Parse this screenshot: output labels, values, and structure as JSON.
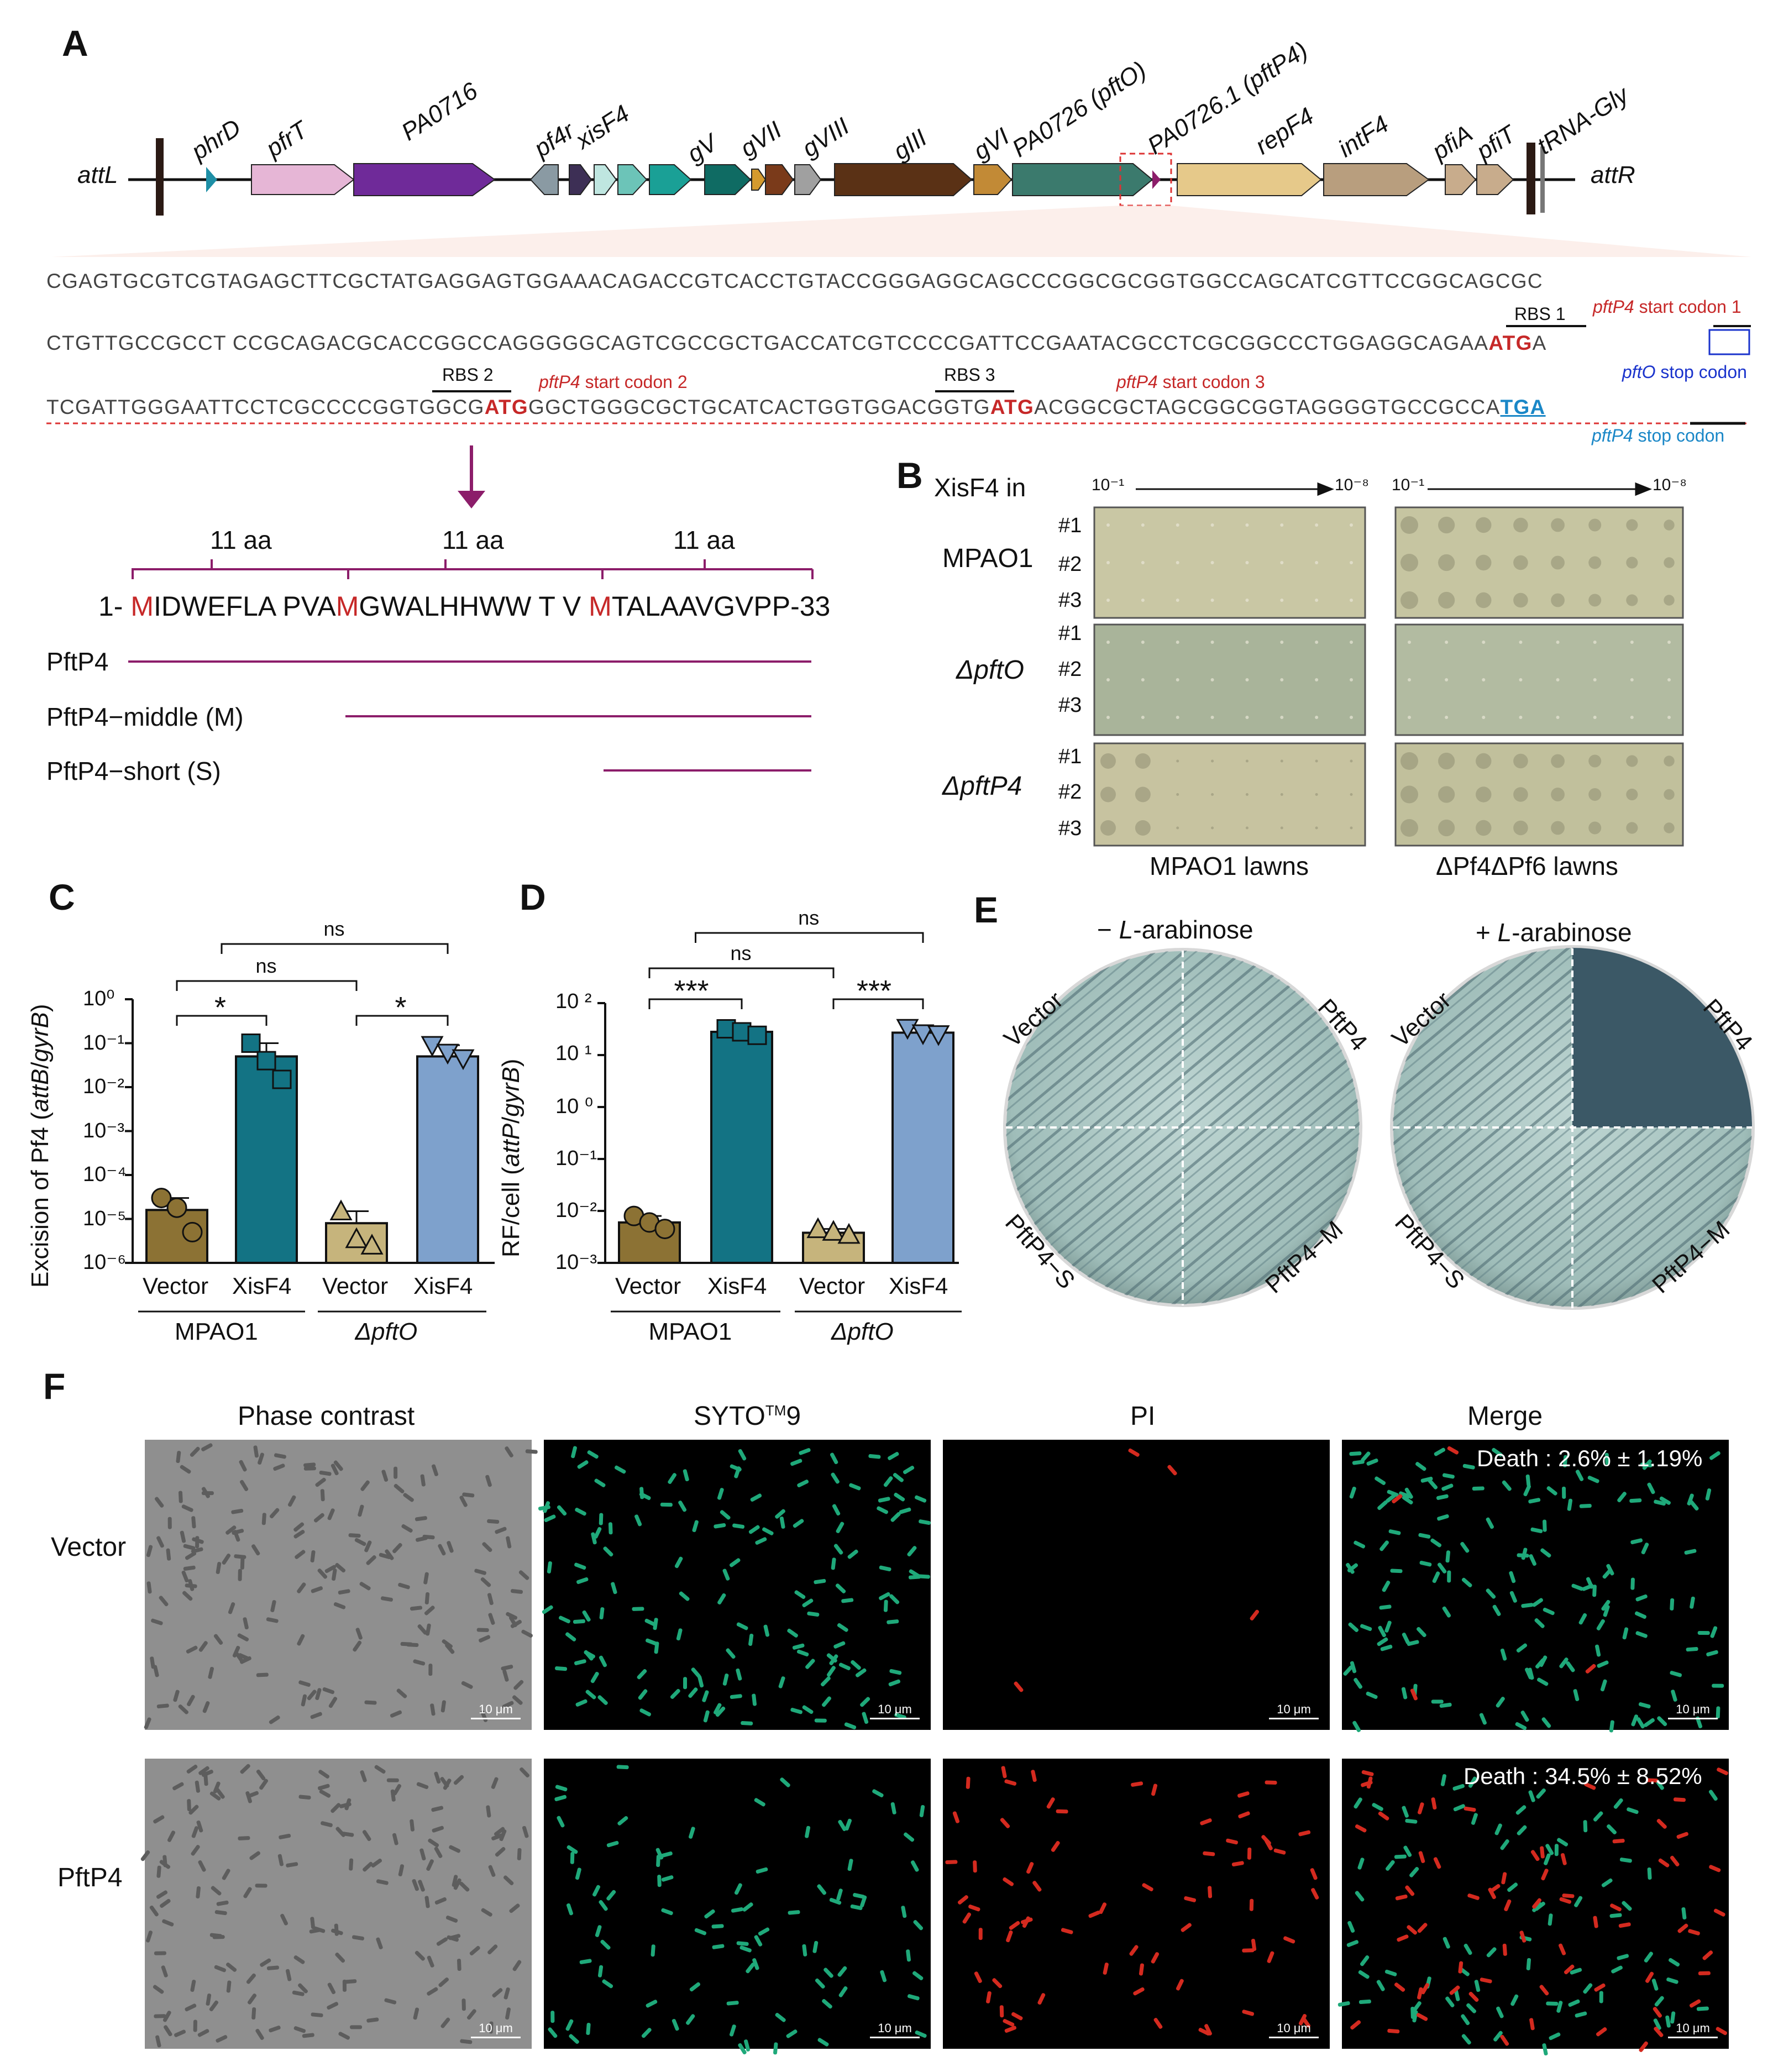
{
  "panels": {
    "A": "A",
    "B": "B",
    "C": "C",
    "D": "D",
    "E": "E",
    "F": "F"
  },
  "genome_map": {
    "left_end": "attL",
    "right_end": "attR",
    "genes": [
      "phrD",
      "pfrT",
      "PA0716",
      "pf4r",
      "xisF4",
      "gV",
      "gVII",
      "gVIII",
      "gIII",
      "gVI",
      "PA0726 (pftO)",
      "PA0726.1 (pftP4)",
      "repF4",
      "intF4",
      "pfiA",
      "pfiT",
      "tRNA-Gly"
    ],
    "colors": {
      "phrD": "#1e8fa6",
      "pfrT": "#e6b6d6",
      "PA0716": "#6f2a99",
      "pf4r": "#8a9aa3",
      "xisF4": "#3d2f55",
      "gV": "#0f6b63",
      "gVII": "#7a3a1a",
      "gVIII": "#5c3a1e",
      "gIII": "#5a3115",
      "gVI": "#c28a36",
      "pftO": "#3b7a6d",
      "pftP4": "#8c1d6a",
      "repF4": "#e6c98a",
      "intF4": "#b89e7e",
      "pfiA": "#c8ac8c",
      "pfiT": "#c8ac8c"
    }
  },
  "sequence": {
    "line1": "CGAGTGCGTCGTAGAGCTTCGCTATGAGGAGTGGAAACAGACCGTCACCTGTACCGGGAGGCAGCCCGGCGCGGTGGCCAGCATCGTTCCGGCAGCGC",
    "line2a": "CTGTTGCCGCCT CCGCAGACGCACCGGCCAGGGGGCAGTCGCCGCTGACCATCGTCCCCGATTCCGAATACGCCTCGCGGCCCTGGAGGCAGAA",
    "line2b": "ATG",
    "line2c": "A",
    "line3a": "TCGATTGGGAATTCCTCGCCCCGGTGGCG",
    "line3b": "ATG",
    "line3c": "GGCTGGGCGCTGCATCACTGGTGGACGGTG",
    "line3d": "ATG",
    "line3e": "ACGGCGCTAGCGGCGGTAGGGGTGCCGCCA",
    "line3f": "TGA",
    "rbs1": "RBS 1",
    "rbs2": "RBS 2",
    "rbs3": "RBS 3",
    "gene_pftP4": "pftP4",
    "gene_pftO": "pftO",
    "start1": " start codon 1",
    "start2": " start codon 2",
    "start3": " start codon 3",
    "stop_pftO": " stop codon",
    "stop_pftP4": " stop codon"
  },
  "peptide": {
    "seg1": "11 aa",
    "seg2": "11 aa",
    "seg3": "11 aa",
    "prefix": "1-",
    "m1": "M",
    "s1": "IDWEFLA PVA",
    "m2": "M",
    "s2": "GWALHHWW T V ",
    "m3": "M",
    "s3": "TALAAVGVPP-33",
    "constructs": [
      "PftP4",
      "PftP4−middle (M)",
      "PftP4−short (S)"
    ]
  },
  "panel_b": {
    "title": "XisF4 in",
    "dilution_start": "10⁻¹",
    "dilution_end": "10⁻⁸",
    "strains": [
      "MPAO1",
      "ΔpftO",
      "ΔpftP4"
    ],
    "replicates": [
      "#1",
      "#2",
      "#3"
    ],
    "lawns": [
      "MPAO1 lawns",
      "ΔPf4ΔPf6 lawns"
    ],
    "plaques_visible": [
      [
        false,
        true
      ],
      [
        false,
        false
      ],
      [
        true,
        true
      ]
    ]
  },
  "chart_data": [
    {
      "type": "bar",
      "title": "",
      "ylabel": "Excision of Pf4 (attB/gyrB)",
      "yscale": "log",
      "ylim": [
        1e-06,
        1
      ],
      "ytick_labels": [
        "10⁰",
        "10⁻¹",
        "10⁻²",
        "10⁻³",
        "10⁻⁴",
        "10⁻⁵",
        "10⁻⁶"
      ],
      "categories": [
        "Vector",
        "XisF4",
        "Vector",
        "XisF4"
      ],
      "groups": [
        "MPAO1",
        "ΔpftO"
      ],
      "values": [
        1.6e-05,
        0.05,
        8e-06,
        0.05
      ],
      "points": [
        [
          3e-05,
          1.8e-05,
          5e-06
        ],
        [
          0.1,
          0.04,
          0.015
        ],
        [
          1.5e-05,
          3.5e-06,
          2.5e-06
        ],
        [
          0.09,
          0.06,
          0.045
        ]
      ],
      "colors": [
        "#8c7234",
        "#137384",
        "#c6b47c",
        "#7ea1cc"
      ],
      "markers": [
        "circle",
        "square",
        "triangle-up",
        "triangle-down"
      ],
      "significance": [
        [
          "*",
          "Vector MPAO1 vs XisF4 MPAO1"
        ],
        [
          "*",
          "Vector ΔpftO vs XisF4 ΔpftO"
        ],
        [
          "ns",
          "Vector MPAO1 vs Vector ΔpftO"
        ],
        [
          "ns",
          "XisF4 MPAO1 vs XisF4 ΔpftO"
        ]
      ]
    },
    {
      "type": "bar",
      "title": "",
      "ylabel": "RF/cell (attP/gyrB)",
      "yscale": "log",
      "ylim": [
        0.001,
        100
      ],
      "ytick_labels": [
        "10 ²",
        "10 ¹",
        "10 ⁰",
        "10⁻¹",
        "10⁻²",
        "10⁻³"
      ],
      "categories": [
        "Vector",
        "XisF4",
        "Vector",
        "XisF4"
      ],
      "groups": [
        "MPAO1",
        "ΔpftO"
      ],
      "values": [
        0.006,
        28,
        0.0038,
        27
      ],
      "points": [
        [
          0.008,
          0.006,
          0.0045
        ],
        [
          32,
          28,
          24
        ],
        [
          0.0045,
          0.004,
          0.0035
        ],
        [
          33,
          26,
          25
        ]
      ],
      "colors": [
        "#8c7234",
        "#137384",
        "#c6b47c",
        "#7ea1cc"
      ],
      "markers": [
        "circle",
        "square",
        "triangle-up",
        "triangle-down"
      ],
      "significance": [
        [
          "***",
          "Vector MPAO1 vs XisF4 MPAO1"
        ],
        [
          "***",
          "Vector ΔpftO vs XisF4 ΔpftO"
        ],
        [
          "ns",
          "Vector MPAO1 vs Vector ΔpftO"
        ],
        [
          "ns",
          "XisF4 MPAO1 vs XisF4 ΔpftO"
        ]
      ]
    }
  ],
  "panel_e": {
    "minus": "− L-arabinose",
    "plus": "+ L-arabinose",
    "minus_sign": "− ",
    "plus_sign": "+ ",
    "sugar": "L",
    "sugar_rest": "-arabinose",
    "quadrants": [
      "Vector",
      "PftP4",
      "PftP4−S",
      "PftP4−M"
    ]
  },
  "panel_f": {
    "columns": [
      "Phase contrast",
      "SYTO",
      "PI",
      "Merge"
    ],
    "syto_sup": "TM",
    "syto_num": "9",
    "rows": [
      "Vector",
      "PftP4"
    ],
    "death": [
      "Death : 2.6% ± 1.19%",
      "Death : 34.5% ± 8.52%"
    ],
    "scale_bar": "10 μm"
  }
}
